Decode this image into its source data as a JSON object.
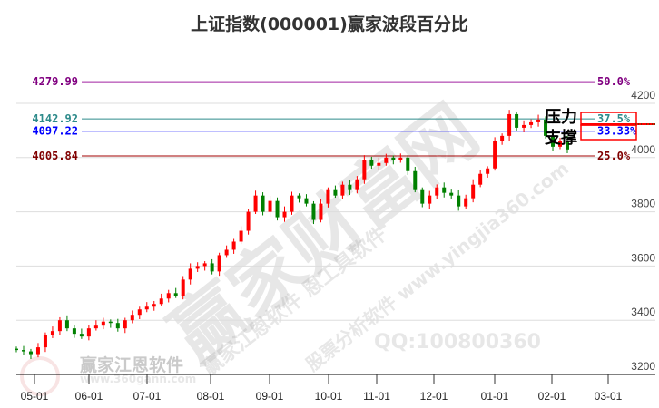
{
  "title": "上证指数(000001)赢家波段百分比",
  "watermarks": {
    "main": "赢家财富网",
    "sub": "股票分析软件 www.yingjia360.com",
    "sub2": "赢家江恩软件 恩工具软件",
    "qq": "QQ:100800360",
    "brand": "赢家江恩软件",
    "site": "www.360gann.com"
  },
  "colors": {
    "up": "#ff0000",
    "down": "#008000"
  },
  "chart_data": {
    "type": "candlestick",
    "title": "上证指数(000001)赢家波段百分比",
    "ylim": [
      3200,
      4280
    ],
    "yticks": [
      3200,
      3400,
      3600,
      3800,
      4000,
      4200
    ],
    "xticks": [
      "05-01",
      "06-01",
      "07-01",
      "08-01",
      "09-01",
      "10-01",
      "11-01",
      "12-01",
      "01-01",
      "02-01",
      "03-01"
    ],
    "grid": true,
    "closes": [
      3290,
      3285,
      3275,
      3300,
      3345,
      3360,
      3400,
      3370,
      3350,
      3340,
      3370,
      3380,
      3395,
      3390,
      3370,
      3400,
      3420,
      3440,
      3450,
      3460,
      3480,
      3500,
      3490,
      3550,
      3590,
      3600,
      3610,
      3580,
      3640,
      3660,
      3690,
      3730,
      3800,
      3860,
      3800,
      3840,
      3780,
      3800,
      3860,
      3850,
      3830,
      3770,
      3830,
      3880,
      3860,
      3900,
      3880,
      3920,
      3990,
      3970,
      3980,
      4000,
      3990,
      4000,
      3950,
      3880,
      3830,
      3860,
      3890,
      3870,
      3860,
      3820,
      3850,
      3900,
      3940,
      3960,
      4060,
      4080,
      4160,
      4110,
      4120,
      4130,
      4140,
      4080,
      4040,
      4060,
      4030
    ],
    "levels": [
      {
        "value": "4279.99",
        "pct": "50.0%",
        "color": "#a020a0",
        "label_color": "#800080"
      },
      {
        "value": "4142.92",
        "pct": "37.5%",
        "color": "#2e8b8b",
        "label_color": "#2e8b8b"
      },
      {
        "value": "4097.22",
        "pct": "33.33%",
        "color": "#0000ff",
        "label_color": "#0000ff"
      },
      {
        "value": "4005.84",
        "pct": "25.0%",
        "color": "#a00000",
        "label_color": "#800000"
      }
    ],
    "annotations": {
      "resistance": "压力",
      "support": "支撑"
    }
  }
}
